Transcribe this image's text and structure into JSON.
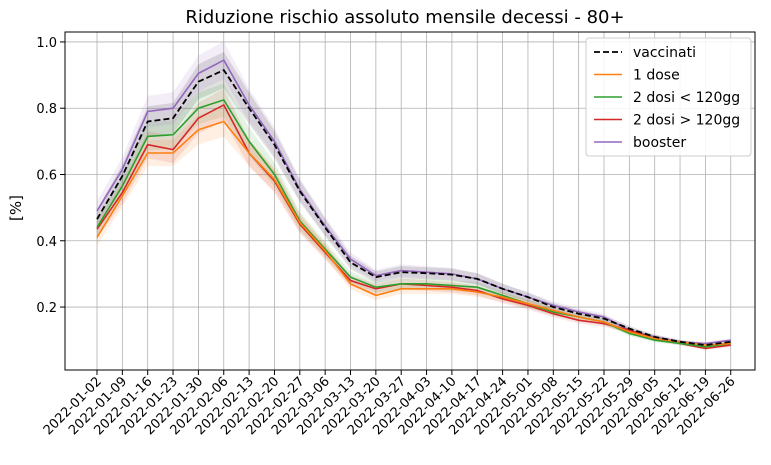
{
  "chart_data": {
    "type": "line",
    "title": "Riduzione rischio assoluto mensile decessi - 80+",
    "xlabel": "",
    "ylabel": "[%]",
    "ylim": [
      0.01,
      1.03
    ],
    "yticks": [
      0.2,
      0.4,
      0.6,
      0.8,
      1.0
    ],
    "yticklabels": [
      "0.2",
      "0.4",
      "0.6",
      "0.8",
      "1.0"
    ],
    "grid": true,
    "legend": "top-right",
    "x": [
      "2022-01-02",
      "2022-01-09",
      "2022-01-16",
      "2022-01-23",
      "2022-01-30",
      "2022-02-06",
      "2022-02-13",
      "2022-02-20",
      "2022-02-27",
      "2022-03-06",
      "2022-03-13",
      "2022-03-20",
      "2022-03-27",
      "2022-04-03",
      "2022-04-10",
      "2022-04-17",
      "2022-04-24",
      "2022-05-01",
      "2022-05-08",
      "2022-05-15",
      "2022-05-22",
      "2022-05-29",
      "2022-06-05",
      "2022-06-12",
      "2022-06-19",
      "2022-06-26"
    ],
    "series": [
      {
        "name": "vaccinati",
        "color": "#000000",
        "dash": true,
        "values": [
          0.465,
          0.595,
          0.76,
          0.77,
          0.88,
          0.915,
          0.8,
          0.69,
          0.55,
          0.44,
          0.335,
          0.29,
          0.305,
          0.302,
          0.298,
          0.285,
          0.255,
          0.23,
          0.2,
          0.18,
          0.165,
          0.135,
          0.11,
          0.095,
          0.085,
          0.095
        ]
      },
      {
        "name": "1 dose",
        "color": "#ff7f0e",
        "values": [
          0.41,
          0.535,
          0.665,
          0.665,
          0.735,
          0.76,
          0.665,
          0.585,
          0.455,
          0.37,
          0.27,
          0.235,
          0.255,
          0.255,
          0.255,
          0.245,
          0.23,
          0.21,
          0.19,
          0.17,
          0.155,
          0.125,
          0.105,
          0.095,
          0.085,
          0.09
        ]
      },
      {
        "name": "2 dosi < 120gg",
        "color": "#2ca02c",
        "values": [
          0.44,
          0.565,
          0.715,
          0.72,
          0.8,
          0.825,
          0.7,
          0.6,
          0.46,
          0.375,
          0.29,
          0.26,
          0.27,
          0.27,
          0.265,
          0.26,
          0.235,
          0.21,
          0.185,
          0.17,
          0.155,
          0.12,
          0.1,
          0.09,
          0.08,
          0.09
        ]
      },
      {
        "name": "2 dosi > 120gg",
        "color": "#d62728",
        "values": [
          0.435,
          0.545,
          0.69,
          0.675,
          0.77,
          0.81,
          0.665,
          0.58,
          0.45,
          0.365,
          0.28,
          0.255,
          0.27,
          0.265,
          0.26,
          0.25,
          0.225,
          0.205,
          0.18,
          0.16,
          0.15,
          0.13,
          0.105,
          0.09,
          0.075,
          0.085
        ]
      },
      {
        "name": "booster",
        "color": "#9467bd",
        "values": [
          0.49,
          0.615,
          0.79,
          0.8,
          0.905,
          0.945,
          0.81,
          0.7,
          0.555,
          0.445,
          0.345,
          0.295,
          0.31,
          0.305,
          0.3,
          0.285,
          0.255,
          0.23,
          0.205,
          0.185,
          0.17,
          0.13,
          0.11,
          0.095,
          0.09,
          0.1
        ]
      }
    ]
  }
}
